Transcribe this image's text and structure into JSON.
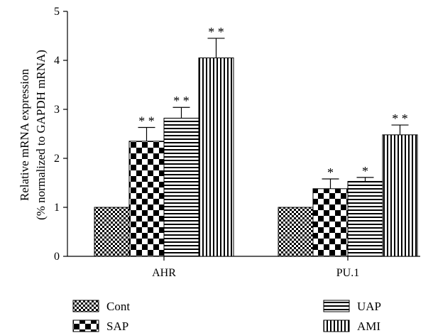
{
  "chart_data": {
    "type": "bar",
    "categories": [
      "AHR",
      "PU.1"
    ],
    "ylabel_line1": "Relative mRNA expression",
    "ylabel_line2": "(% normalized to GAPDH mRNA)",
    "xlabel": "",
    "ylim": [
      0,
      5
    ],
    "yticks": [
      0,
      1,
      2,
      3,
      4,
      5
    ],
    "grid": false,
    "legend_position": "bottom-left",
    "series": [
      {
        "name": "Cont",
        "pattern": "fine-checker",
        "values": [
          1.0,
          1.0
        ],
        "errors": [
          0,
          0
        ],
        "significance": [
          "",
          ""
        ]
      },
      {
        "name": "SAP",
        "pattern": "checker",
        "values": [
          2.35,
          1.38
        ],
        "errors": [
          0.28,
          0.2
        ],
        "significance": [
          "**",
          "*"
        ]
      },
      {
        "name": "UAP",
        "pattern": "horizontal-stripes",
        "values": [
          2.82,
          1.53
        ],
        "errors": [
          0.22,
          0.08
        ],
        "significance": [
          "**",
          "*"
        ]
      },
      {
        "name": "AMI",
        "pattern": "vertical-stripes",
        "values": [
          4.05,
          2.48
        ],
        "errors": [
          0.4,
          0.2
        ],
        "significance": [
          "**",
          "**"
        ]
      }
    ]
  }
}
